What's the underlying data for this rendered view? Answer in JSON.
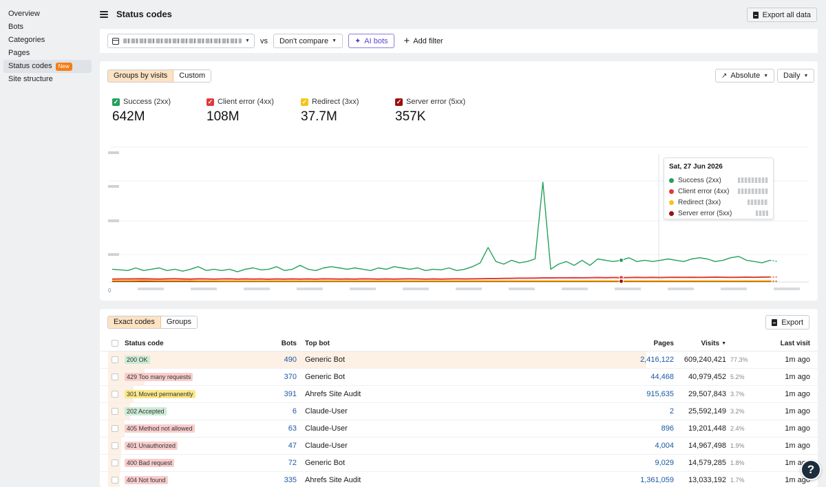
{
  "sidebar": {
    "items": [
      {
        "label": "Overview"
      },
      {
        "label": "Bots"
      },
      {
        "label": "Categories"
      },
      {
        "label": "Pages"
      },
      {
        "label": "Status codes",
        "badge": "New",
        "active": true
      },
      {
        "label": "Site structure"
      }
    ]
  },
  "header": {
    "title": "Status codes",
    "export_all": "Export all data"
  },
  "filters": {
    "vs": "vs",
    "compare": "Don't compare",
    "ai_bots": "AI bots",
    "add_filter": "Add filter"
  },
  "chart_panel": {
    "group_tabs": [
      "Groups by visits",
      "Custom"
    ],
    "mode": "Absolute",
    "interval": "Daily",
    "metrics": [
      {
        "label": "Success (2xx)",
        "value": "642M",
        "color": "#23a05a"
      },
      {
        "label": "Client error (4xx)",
        "value": "108M",
        "color": "#e03a3a"
      },
      {
        "label": "Redirect (3xx)",
        "value": "37.7M",
        "color": "#f5c518"
      },
      {
        "label": "Server error (5xx)",
        "value": "357K",
        "color": "#9b1010"
      }
    ],
    "y_zero": "0",
    "tooltip": {
      "date": "Sat, 27 Jun 2026",
      "rows": [
        "Success (2xx)",
        "Client error (4xx)",
        "Redirect (3xx)",
        "Server error (5xx)"
      ]
    }
  },
  "chart_data": {
    "type": "line",
    "ylim": [
      0,
      100
    ],
    "series": [
      {
        "name": "Success (2xx)",
        "color": "#23a05a",
        "values": [
          10,
          9.5,
          9,
          11,
          9,
          10,
          11,
          9,
          10,
          8.5,
          10,
          12,
          9,
          10,
          9,
          10,
          8,
          10,
          11,
          9.5,
          10,
          12,
          9,
          10,
          13,
          10,
          9,
          11,
          12,
          11,
          10,
          11,
          10,
          9,
          11,
          10,
          12,
          11,
          10,
          11,
          9,
          10,
          9.5,
          11,
          9,
          10,
          12,
          15,
          27,
          16,
          14,
          17,
          15,
          16,
          18,
          78,
          10,
          14,
          16,
          13,
          17,
          13,
          18,
          17,
          16,
          17,
          19,
          16,
          17,
          16,
          17,
          18,
          17,
          16,
          18,
          19,
          18,
          16,
          17,
          19,
          20,
          17,
          16,
          15,
          17,
          16
        ]
      },
      {
        "name": "Client error (4xx)",
        "color": "#e03a3a",
        "values": [
          2.3,
          2.4,
          2.4,
          2.5,
          2.6,
          2.4,
          2.3,
          2.5,
          2.6,
          2.4,
          2.3,
          2.5,
          2.4,
          2.3,
          2.4,
          2.5,
          2.3,
          2.4,
          2.3,
          2.4,
          2.2,
          2.4,
          2.3,
          2.4,
          2.3,
          2.4,
          2.3,
          2.5,
          2.4,
          2.3,
          2.4,
          2.3,
          2.5,
          2.4,
          2.3,
          2.4,
          2.3,
          2.4,
          2.5,
          2.4,
          2.3,
          2.4,
          2.3,
          2.4,
          2.5,
          2.4,
          2.5,
          2.6,
          2.7,
          2.7,
          2.8,
          2.9,
          3.0,
          3.0,
          3.1,
          3.2,
          3.2,
          3.3,
          3.3,
          3.4,
          3.3,
          3.4,
          3.5,
          3.4,
          3.5,
          3.4,
          3.5,
          3.6,
          3.5,
          3.6,
          3.5,
          3.6,
          3.7,
          3.6,
          3.7,
          3.6,
          3.7,
          3.8,
          3.7,
          3.6,
          3.7,
          3.8,
          3.7,
          3.8,
          3.9,
          3.8
        ]
      },
      {
        "name": "Redirect (3xx)",
        "color": "#f5c518",
        "values": [
          1.2,
          1.2,
          1.2,
          1.3,
          1.4,
          1.3,
          1.2,
          1.3,
          1.2,
          1.3,
          1.2,
          1.1,
          1.1,
          1.1,
          1.0,
          1.0,
          1.0,
          1.0,
          1.0,
          1.0,
          1.0,
          1.0,
          1.0,
          1.0,
          1.0,
          1.0,
          1.0,
          1.0,
          1.0,
          1.0,
          1.0,
          1.0,
          1.0,
          1.0,
          1.0,
          1.0,
          1.0,
          1.0,
          1.0,
          1.0,
          1.0,
          1.0,
          1.0,
          1.0,
          1.0,
          1.0,
          1.0,
          1.0,
          1.0,
          1.0,
          1.0,
          1.0,
          1.0,
          1.0,
          1.0,
          1.0,
          1.0,
          1.0,
          1.0,
          1.0,
          1.0,
          1.0,
          1.0,
          1.0,
          1.0,
          1.0,
          1.0,
          1.0,
          1.0,
          1.0,
          1.0,
          1.0,
          1.0,
          1.0,
          1.0,
          1.0,
          1.0,
          1.0,
          1.0,
          1.0,
          1.0,
          1.0,
          1.0,
          1.0,
          1.0,
          1.0
        ]
      },
      {
        "name": "Server error (5xx)",
        "color": "#9b1010",
        "values": [
          0.6,
          0.6,
          0.6,
          0.6,
          0.6,
          0.6,
          0.6,
          0.6,
          0.6,
          0.6,
          0.6,
          0.6,
          0.6,
          0.6,
          0.6,
          0.6,
          0.6,
          0.6,
          0.6,
          0.6,
          0.6,
          0.6,
          0.6,
          0.6,
          0.6,
          0.6,
          0.6,
          0.6,
          0.6,
          0.6,
          0.6,
          0.6,
          0.6,
          0.6,
          0.6,
          0.6,
          0.6,
          0.6,
          0.6,
          0.6,
          0.6,
          0.6,
          0.6,
          0.6,
          0.6,
          0.6,
          0.6,
          0.6,
          0.6,
          0.6,
          0.6,
          0.6,
          0.6,
          0.6,
          0.6,
          0.6,
          0.6,
          0.6,
          0.6,
          0.6,
          0.6,
          0.6,
          0.6,
          0.6,
          0.6,
          0.6,
          0.6,
          0.6,
          0.6,
          0.6,
          0.6,
          0.6,
          0.6,
          0.6,
          0.6,
          0.6,
          0.6,
          0.6,
          0.6,
          0.6,
          0.6,
          0.6,
          0.6,
          0.6,
          0.6,
          0.6
        ]
      }
    ]
  },
  "table": {
    "tabs": [
      "Exact codes",
      "Groups"
    ],
    "export": "Export",
    "columns": {
      "status": "Status code",
      "bots": "Bots",
      "top_bot": "Top bot",
      "pages": "Pages",
      "visits": "Visits",
      "last_visit": "Last visit"
    },
    "rows": [
      {
        "code": "200 OK",
        "tone": "green",
        "bots": "490",
        "top_bot": "Generic Bot",
        "pages": "2,416,122",
        "visits": "609,240,421",
        "pct": "77.3%",
        "share": 0.773,
        "last": "1m ago"
      },
      {
        "code": "429 Too many requests",
        "tone": "red",
        "bots": "370",
        "top_bot": "Generic Bot",
        "pages": "44,468",
        "visits": "40,979,452",
        "pct": "5.2%",
        "share": 0.052,
        "last": "1m ago"
      },
      {
        "code": "301 Moved permanently",
        "tone": "yellow",
        "bots": "391",
        "top_bot": "Ahrefs Site Audit",
        "pages": "915,635",
        "visits": "29,507,843",
        "pct": "3.7%",
        "share": 0.037,
        "last": "1m ago"
      },
      {
        "code": "202 Accepted",
        "tone": "green",
        "bots": "6",
        "top_bot": "Claude-User",
        "pages": "2",
        "visits": "25,592,149",
        "pct": "3.2%",
        "share": 0.032,
        "last": "1m ago"
      },
      {
        "code": "405 Method not allowed",
        "tone": "red",
        "bots": "63",
        "top_bot": "Claude-User",
        "pages": "896",
        "visits": "19,201,448",
        "pct": "2.4%",
        "share": 0.024,
        "last": "1m ago"
      },
      {
        "code": "401 Unauthorized",
        "tone": "red",
        "bots": "47",
        "top_bot": "Claude-User",
        "pages": "4,004",
        "visits": "14,967,498",
        "pct": "1.9%",
        "share": 0.019,
        "last": "1m ago"
      },
      {
        "code": "400 Bad request",
        "tone": "red",
        "bots": "72",
        "top_bot": "Generic Bot",
        "pages": "9,029",
        "visits": "14,579,285",
        "pct": "1.8%",
        "share": 0.018,
        "last": "1m ago"
      },
      {
        "code": "404 Not found",
        "tone": "red",
        "bots": "335",
        "top_bot": "Ahrefs Site Audit",
        "pages": "1,361,059",
        "visits": "13,033,192",
        "pct": "1.7%",
        "share": 0.017,
        "last": "1m ago"
      }
    ]
  },
  "help": "?"
}
